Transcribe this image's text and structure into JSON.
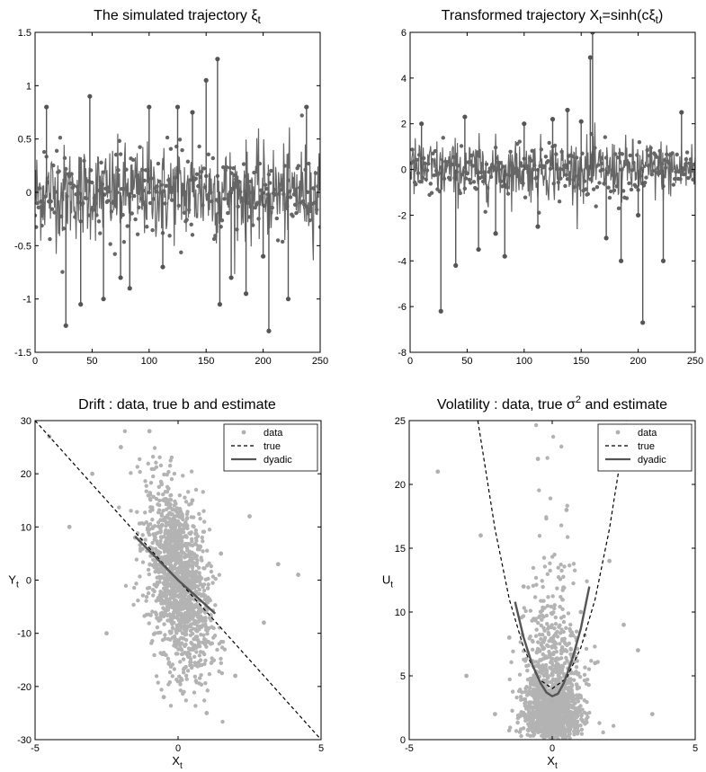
{
  "chart_data": [
    {
      "type": "line",
      "title": "The simulated trajectory ξ",
      "title_sub": "t",
      "xlabel": "",
      "ylabel": "",
      "xlim": [
        0,
        250
      ],
      "ylim": [
        -1.5,
        1.5
      ],
      "xticks": [
        0,
        50,
        100,
        150,
        200,
        250
      ],
      "yticks": [
        -1.5,
        -1,
        -0.5,
        0,
        0.5,
        1,
        1.5
      ],
      "xtick_labels": [
        "0",
        "50",
        "100",
        "150",
        "200",
        "250"
      ],
      "ytick_labels": [
        "-1.5",
        "-1",
        "-0.5",
        "0",
        "0.5",
        "1",
        "1.5"
      ],
      "series": [
        {
          "style": "stem-markers",
          "color": "#555555",
          "x": [
            10,
            27,
            40,
            48,
            60,
            75,
            83,
            100,
            112,
            125,
            138,
            150,
            160,
            162,
            172,
            185,
            200,
            205,
            222,
            238
          ],
          "values": [
            0.8,
            -1.25,
            -1.05,
            0.9,
            -1.0,
            -0.8,
            -0.9,
            0.8,
            -0.7,
            0.8,
            0.75,
            1.05,
            1.25,
            -1.05,
            -0.8,
            -0.95,
            -0.6,
            -1.3,
            -1.0,
            0.8
          ]
        }
      ],
      "grid": false
    },
    {
      "type": "line",
      "title": "Transformed trajectory X",
      "title_sub": "t",
      "title_rest": "=sinh(cξ",
      "title_sub2": "t",
      "title_end": ")",
      "xlabel": "",
      "ylabel": "",
      "xlim": [
        0,
        250
      ],
      "ylim": [
        -8,
        6
      ],
      "xticks": [
        0,
        50,
        100,
        150,
        200,
        250
      ],
      "yticks": [
        -8,
        -6,
        -4,
        -2,
        0,
        2,
        4,
        6
      ],
      "xtick_labels": [
        "0",
        "50",
        "100",
        "150",
        "200",
        "250"
      ],
      "ytick_labels": [
        "-8",
        "-6",
        "-4",
        "-2",
        "0",
        "2",
        "4",
        "6"
      ],
      "series": [
        {
          "style": "stem-markers",
          "color": "#555555",
          "x": [
            10,
            27,
            40,
            48,
            60,
            75,
            83,
            100,
            112,
            125,
            138,
            150,
            158,
            160,
            172,
            185,
            200,
            204,
            222,
            238
          ],
          "values": [
            2.0,
            -6.2,
            -4.2,
            2.3,
            -3.5,
            -2.8,
            -3.8,
            2.0,
            -2.5,
            2.2,
            2.6,
            2.1,
            4.9,
            6.0,
            -3.0,
            -4.0,
            -2.0,
            -6.7,
            -4.0,
            2.5
          ]
        }
      ],
      "grid": false
    },
    {
      "type": "scatter",
      "title": "Drift : data, true b and estimate",
      "xlabel": "X",
      "xlabel_sub": "t",
      "ylabel": "Y",
      "ylabel_sub": "t",
      "xlim": [
        -5,
        5
      ],
      "ylim": [
        -30,
        30
      ],
      "xticks": [
        -5,
        0,
        5
      ],
      "yticks": [
        -30,
        -20,
        -10,
        0,
        10,
        20,
        30
      ],
      "xtick_labels": [
        "-5",
        "0",
        "5"
      ],
      "ytick_labels": [
        "-30",
        "-20",
        "-10",
        "0",
        "10",
        "20",
        "30"
      ],
      "legend": {
        "position": "top-right",
        "entries": [
          "data",
          "true",
          "dyadic"
        ]
      },
      "series": [
        {
          "name": "data",
          "style": "scatter",
          "color": "#b0b0b0",
          "x": [
            -4.5,
            -3.8,
            -3.0,
            -2.5,
            -2.0,
            -1.5,
            -1.0,
            -0.5,
            0.0,
            0.5,
            1.0,
            1.5,
            2.0,
            2.5,
            3.0,
            3.5,
            4.2
          ],
          "values": [
            27,
            10,
            20,
            -10,
            25,
            8,
            28,
            -22,
            0,
            15,
            -25,
            5,
            -18,
            12,
            -8,
            3,
            1
          ]
        },
        {
          "name": "true",
          "style": "dashed",
          "color": "#000000",
          "x": [
            -5,
            5
          ],
          "values": [
            30,
            -30
          ]
        },
        {
          "name": "dyadic",
          "style": "solid",
          "color": "#555555",
          "x": [
            -1.5,
            -0.75,
            0,
            0.75,
            1.3
          ],
          "values": [
            8.2,
            4.1,
            0,
            -3.6,
            -6.3
          ]
        }
      ],
      "grid": false
    },
    {
      "type": "scatter",
      "title": "Volatility : data, true σ",
      "title_sup": "2",
      "title_rest": " and estimate",
      "xlabel": "X",
      "xlabel_sub": "t",
      "ylabel": "U",
      "ylabel_sub": "t",
      "xlim": [
        -5,
        5
      ],
      "ylim": [
        0,
        25
      ],
      "xticks": [
        -5,
        0,
        5
      ],
      "yticks": [
        0,
        5,
        10,
        15,
        20,
        25
      ],
      "xtick_labels": [
        "-5",
        "0",
        "5"
      ],
      "ytick_labels": [
        "0",
        "5",
        "10",
        "15",
        "20",
        "25"
      ],
      "legend": {
        "position": "top-right",
        "entries": [
          "data",
          "true",
          "dyadic"
        ]
      },
      "series": [
        {
          "name": "data",
          "style": "scatter",
          "color": "#b0b0b0",
          "x": [
            -4.0,
            -3.0,
            -2.5,
            -2.0,
            -1.5,
            -1.0,
            -0.5,
            0.0,
            0.5,
            1.0,
            1.5,
            2.0,
            2.5,
            3.0,
            3.5
          ],
          "values": [
            21,
            5,
            16,
            2,
            8,
            12,
            22,
            3,
            18,
            10,
            6,
            14,
            9,
            7,
            2
          ]
        },
        {
          "name": "true",
          "style": "dashed",
          "color": "#000000",
          "x": [
            -2.6,
            -2.0,
            -1.5,
            -1.0,
            -0.5,
            0.0,
            0.5,
            1.0,
            1.5,
            2.0,
            2.6
          ],
          "values": [
            25.0,
            16.5,
            11.0,
            7.2,
            4.8,
            4.0,
            4.8,
            7.2,
            11.0,
            16.5,
            25.0
          ]
        },
        {
          "name": "dyadic",
          "style": "solid",
          "color": "#555555",
          "x": [
            -1.3,
            -1.0,
            -0.7,
            -0.4,
            -0.2,
            0.0,
            0.2,
            0.4,
            0.7,
            1.0,
            1.3
          ],
          "values": [
            10.8,
            8.0,
            5.9,
            4.4,
            3.7,
            3.4,
            3.6,
            4.4,
            6.3,
            8.7,
            12.0
          ]
        }
      ],
      "grid": false
    }
  ]
}
